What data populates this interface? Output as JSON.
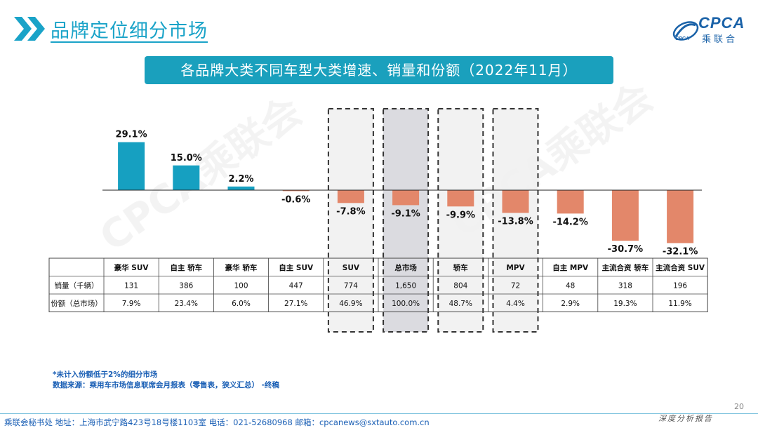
{
  "header": {
    "title": "品牌定位细分市场"
  },
  "logo": {
    "text": "CPCA",
    "subtitle": "乘联合",
    "small": "CPCA"
  },
  "banner": {
    "title": "各品牌大类不同车型大类增速、销量和份额（2022年11月）"
  },
  "colors": {
    "positive": "#16a0c1",
    "negative": "#e3876a",
    "banner": "#1aa0bd",
    "highlight": "#d5d5da"
  },
  "chart_data": {
    "type": "bar",
    "categories": [
      "豪华 SUV",
      "自主 轿车",
      "豪华 轿车",
      "自主 SUV",
      "SUV",
      "总市场",
      "轿车",
      "MPV",
      "自主 MPV",
      "主流合资 轿车",
      "主流合资 SUV"
    ],
    "values": [
      29.1,
      15.0,
      2.2,
      -0.6,
      -7.8,
      -9.1,
      -9.9,
      -13.8,
      -14.2,
      -30.7,
      -32.1
    ],
    "value_labels": [
      "29.1%",
      "15.0%",
      "2.2%",
      "-0.6%",
      "-7.8%",
      "-9.1%",
      "-9.9%",
      "-13.8%",
      "-14.2%",
      "-30.7%",
      "-32.1%"
    ],
    "ylim": [
      -32.1,
      29.1
    ],
    "highlighted": [
      4,
      5,
      6,
      7
    ],
    "grid": false,
    "legend": "none"
  },
  "table": {
    "rows": [
      {
        "label": "销量（千辆）",
        "values": [
          "131",
          "386",
          "100",
          "447",
          "774",
          "1,650",
          "804",
          "72",
          "48",
          "318",
          "196"
        ]
      },
      {
        "label": "份额（总市场）",
        "values": [
          "7.9%",
          "23.4%",
          "6.0%",
          "27.1%",
          "46.9%",
          "100.0%",
          "48.7%",
          "4.4%",
          "2.9%",
          "19.3%",
          "11.9%"
        ]
      }
    ]
  },
  "notes": {
    "note1": "*未计入份额低于2%的细分市场",
    "note2": "数据来源：乘用车市场信息联席会月报表（零售表，狭义汇总） -终稿"
  },
  "footer": {
    "contact": "乘联会秘书处   地址：上海市武宁路423号18号楼1103室  电话：021-52680968   邮箱：cpcanews@sxtauto.com.cn",
    "tagline": "深度分析报告",
    "page": "20"
  },
  "watermark": "CPCA乘联会"
}
